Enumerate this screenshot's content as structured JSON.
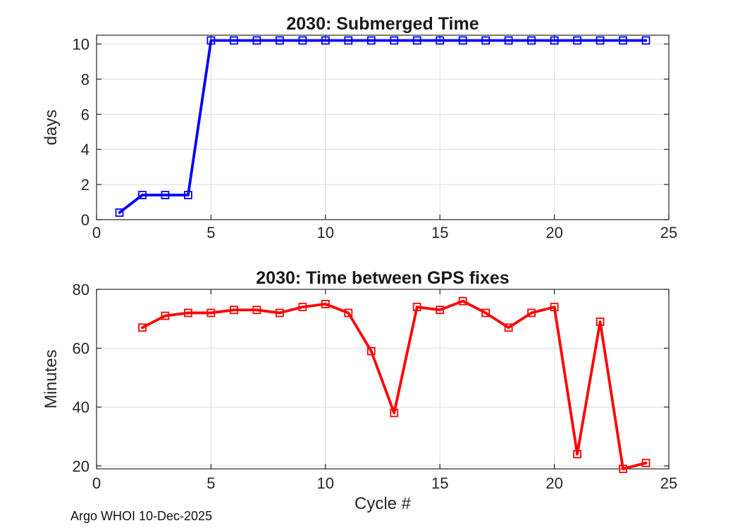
{
  "window": {
    "background": "#ffffff"
  },
  "footer": {
    "text": "Argo WHOI 10-Dec-2025"
  },
  "style": {
    "axis_color": "#262626",
    "grid_color": "#dcdcdc",
    "tick_label_color": "#262626",
    "title_color": "#1a1a1a",
    "submerged_line_color": "#0000ff",
    "gps_line_color": "#ff0000"
  },
  "chart_data": [
    {
      "id": "submerged-time",
      "type": "line",
      "title": "2030: Submerged Time",
      "xlabel": "",
      "ylabel": "days",
      "line_color": "#0000ff",
      "marker": "open-square",
      "grid": true,
      "legend": null,
      "xlim": [
        0,
        25
      ],
      "ylim": [
        0,
        10.5
      ],
      "xticks": [
        0,
        5,
        10,
        15,
        20,
        25
      ],
      "yticks": [
        0,
        2,
        4,
        6,
        8,
        10
      ],
      "x": [
        1,
        2,
        3,
        4,
        5,
        6,
        7,
        8,
        9,
        10,
        11,
        12,
        13,
        14,
        15,
        16,
        17,
        18,
        19,
        20,
        21,
        22,
        23,
        24
      ],
      "y": [
        0.4,
        1.4,
        1.4,
        1.4,
        10.2,
        10.2,
        10.2,
        10.2,
        10.2,
        10.2,
        10.2,
        10.2,
        10.2,
        10.2,
        10.2,
        10.2,
        10.2,
        10.2,
        10.2,
        10.2,
        10.2,
        10.2,
        10.2,
        10.2
      ]
    },
    {
      "id": "gps-fix-time",
      "type": "line",
      "title": "2030: Time between GPS fixes",
      "xlabel": "Cycle #",
      "ylabel": "Minutes",
      "line_color": "#ff0000",
      "marker": "open-square",
      "grid": true,
      "legend": null,
      "xlim": [
        0,
        25
      ],
      "ylim": [
        19,
        80
      ],
      "xticks": [
        0,
        5,
        10,
        15,
        20,
        25
      ],
      "yticks": [
        20,
        40,
        60,
        80
      ],
      "x": [
        2,
        3,
        4,
        5,
        6,
        7,
        8,
        9,
        10,
        11,
        12,
        13,
        14,
        15,
        16,
        17,
        18,
        19,
        20,
        21,
        22,
        23,
        24
      ],
      "y": [
        67,
        71,
        72,
        72,
        73,
        73,
        72,
        74,
        75,
        72,
        59,
        38,
        74,
        73,
        76,
        72,
        67,
        72,
        74,
        24,
        69,
        19,
        21
      ]
    }
  ]
}
